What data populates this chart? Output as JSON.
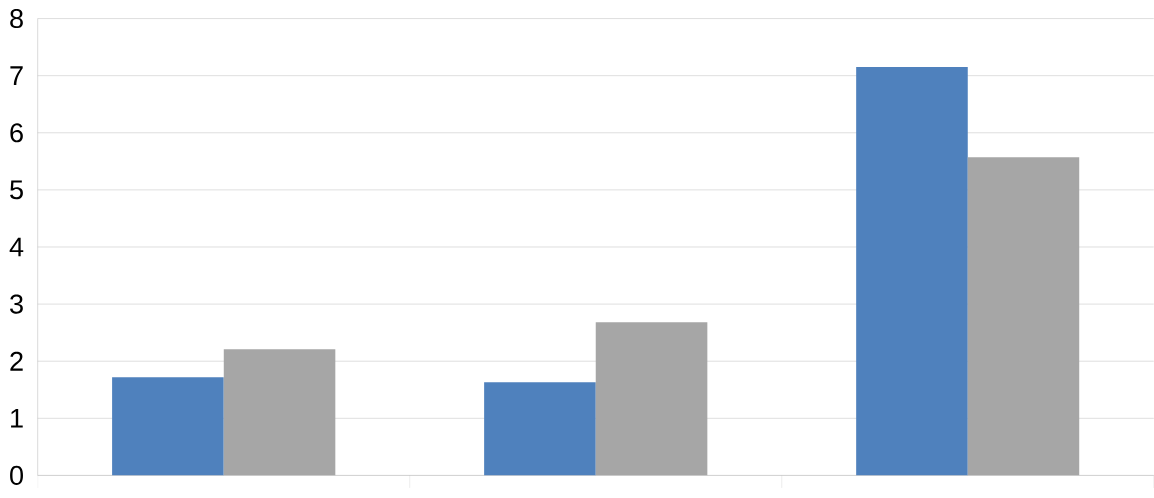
{
  "chart_data": {
    "type": "bar",
    "categories": [
      null,
      null,
      null
    ],
    "series": [
      {
        "color": "#4f81bd",
        "values": [
          1.72,
          1.63,
          7.15
        ]
      },
      {
        "color": "#a6a6a6",
        "values": [
          2.21,
          2.68,
          5.57
        ]
      }
    ],
    "ylim": [
      0,
      8
    ],
    "yticks": [
      0,
      1,
      2,
      3,
      4,
      5,
      6,
      7,
      8
    ],
    "grid": "y"
  }
}
